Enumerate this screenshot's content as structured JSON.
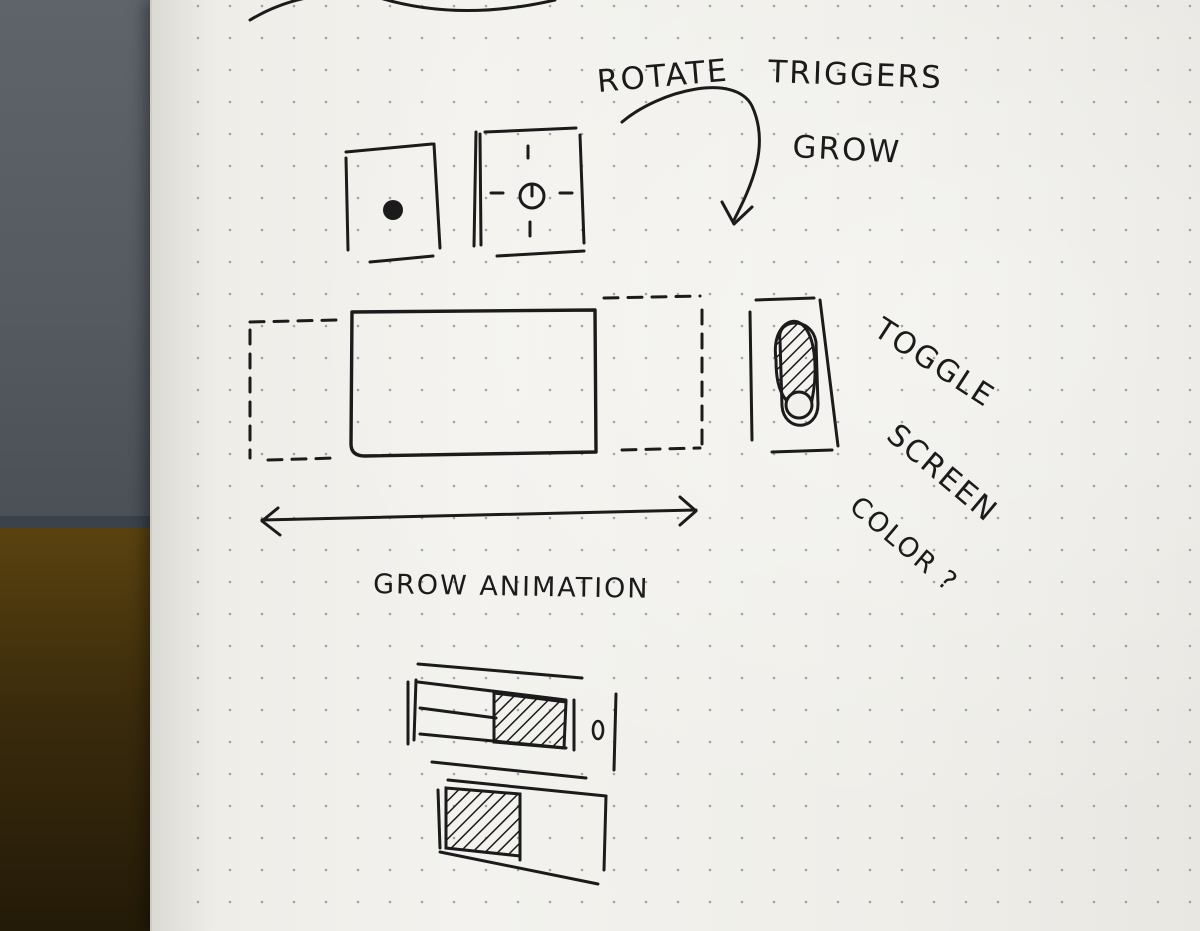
{
  "notes": {
    "rotate": "ROTATE",
    "triggers": "TRIGGERS",
    "grow": "GROW",
    "grow_animation": "GROW ANIMATION",
    "toggle": "TOGGLE",
    "screen": "SCREEN",
    "color": "COLOR ?"
  },
  "colors": {
    "ink": "#1b1b1b",
    "paper": "#f1f0ec",
    "monitor": "#575d63",
    "desk": "#3a2b0c"
  }
}
